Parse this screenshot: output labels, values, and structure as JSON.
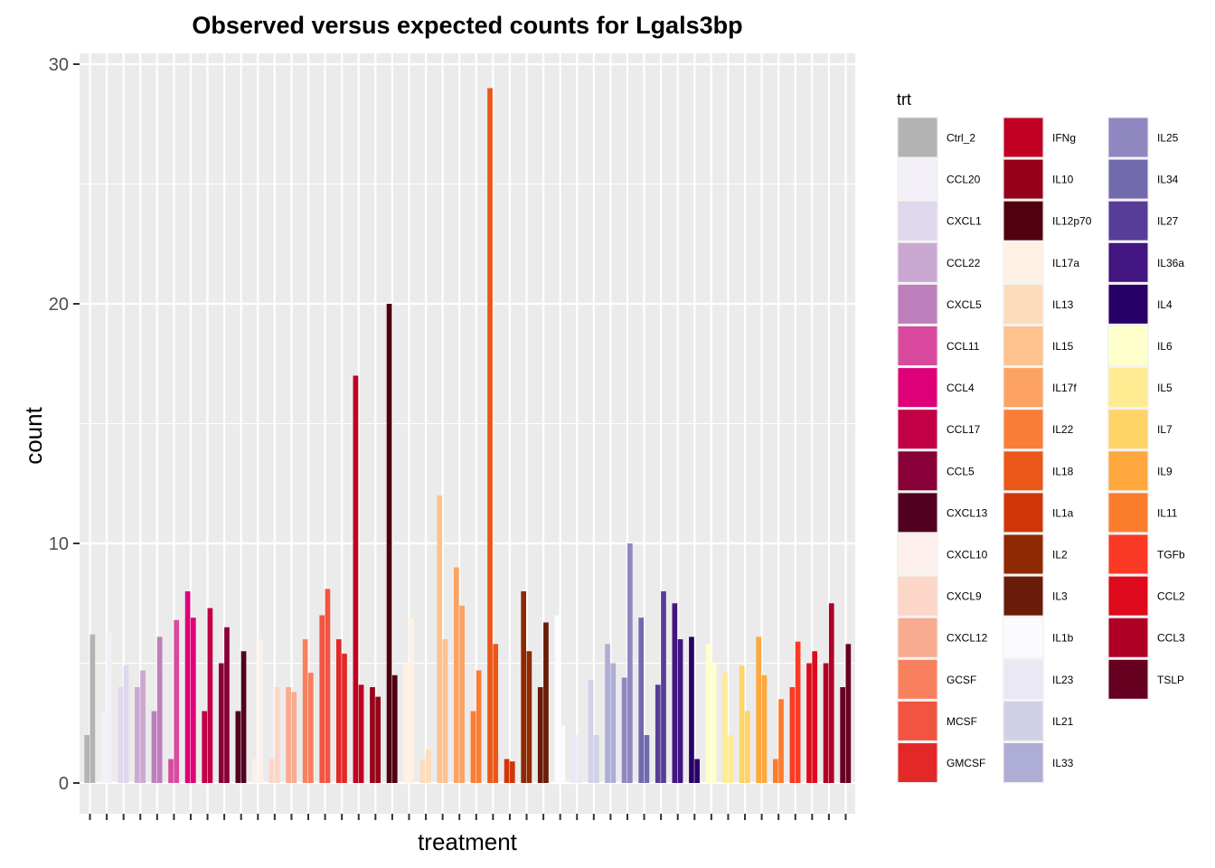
{
  "chart_data": {
    "type": "bar",
    "title": "Observed versus expected counts for Lgals3bp",
    "xlabel": "treatment",
    "ylabel": "count",
    "ylim": [
      -1.3,
      30.5
    ],
    "yticks": [
      0,
      10,
      20,
      30
    ],
    "x_tick_labels_shown": false,
    "grid": true,
    "legend_title": "trt",
    "legend_position": "right",
    "legend_columns": 3,
    "treatments": [
      {
        "name": "Ctrl_2",
        "color": "#B3B3B3",
        "values": [
          2.0,
          6.2
        ]
      },
      {
        "name": "CCL20",
        "color": "#F3EFF6",
        "values": [
          3.0,
          6.3
        ]
      },
      {
        "name": "CXCL1",
        "color": "#DFD7EB",
        "values": [
          4.0,
          4.9
        ]
      },
      {
        "name": "CCL22",
        "color": "#CAA8D2",
        "values": [
          4.0,
          4.7
        ]
      },
      {
        "name": "CXCL5",
        "color": "#BD7FBB",
        "values": [
          3.0,
          6.1
        ]
      },
      {
        "name": "CCL11",
        "color": "#D94A9F",
        "values": [
          1.0,
          6.8
        ]
      },
      {
        "name": "CCL4",
        "color": "#DE0078",
        "values": [
          8.0,
          6.9
        ]
      },
      {
        "name": "CCL17",
        "color": "#C10046",
        "values": [
          3.0,
          7.3
        ]
      },
      {
        "name": "CCL5",
        "color": "#890038",
        "values": [
          5.0,
          6.5
        ]
      },
      {
        "name": "CXCL13",
        "color": "#520020",
        "values": [
          3.0,
          5.5
        ]
      },
      {
        "name": "CXCL10",
        "color": "#FDF0EC",
        "values": [
          1.0,
          6.0
        ]
      },
      {
        "name": "CXCL9",
        "color": "#FCD6C7",
        "values": [
          1.0,
          4.0
        ]
      },
      {
        "name": "CXCL12",
        "color": "#F9AB8F",
        "values": [
          4.0,
          3.8
        ]
      },
      {
        "name": "GCSF",
        "color": "#F8805F",
        "values": [
          6.0,
          4.6
        ]
      },
      {
        "name": "MCSF",
        "color": "#F15440",
        "values": [
          7.0,
          8.1
        ]
      },
      {
        "name": "GMCSF",
        "color": "#E22928",
        "values": [
          6.0,
          5.4
        ]
      },
      {
        "name": "IFNg",
        "color": "#BF0022",
        "values": [
          17.0,
          4.1
        ]
      },
      {
        "name": "IL10",
        "color": "#960018",
        "values": [
          4.0,
          3.6
        ]
      },
      {
        "name": "IL12p70",
        "color": "#50000E",
        "values": [
          20.0,
          4.5
        ]
      },
      {
        "name": "IL17a",
        "color": "#FEF1E3",
        "values": [
          5.0,
          6.9
        ]
      },
      {
        "name": "IL13",
        "color": "#FDDCBC",
        "values": [
          1.0,
          1.4
        ]
      },
      {
        "name": "IL15",
        "color": "#FDC28E",
        "values": [
          12.0,
          6.0
        ]
      },
      {
        "name": "IL17f",
        "color": "#FCA262",
        "values": [
          9.0,
          7.4
        ]
      },
      {
        "name": "IL22",
        "color": "#F97D35",
        "values": [
          3.0,
          4.7
        ]
      },
      {
        "name": "IL18",
        "color": "#EB5718",
        "values": [
          29.0,
          5.8
        ]
      },
      {
        "name": "IL1a",
        "color": "#CF3608",
        "values": [
          1.0,
          0.9
        ]
      },
      {
        "name": "IL2",
        "color": "#8E2904",
        "values": [
          8.0,
          5.5
        ]
      },
      {
        "name": "IL3",
        "color": "#6A1B0A",
        "values": [
          4.0,
          6.7
        ]
      },
      {
        "name": "IL1b",
        "color": "#FBFAFD",
        "values": [
          7.0,
          2.4
        ]
      },
      {
        "name": "IL23",
        "color": "#EAE8F3",
        "values": [
          2.0,
          2.0
        ]
      },
      {
        "name": "IL21",
        "color": "#D0D0E6",
        "values": [
          4.3,
          2.0
        ]
      },
      {
        "name": "IL33",
        "color": "#AEADD5",
        "values": [
          5.8,
          5.0
        ]
      },
      {
        "name": "IL25",
        "color": "#8F87C0",
        "values": [
          4.4,
          10.0
        ]
      },
      {
        "name": "IL34",
        "color": "#716AAD",
        "values": [
          6.9,
          2.0
        ]
      },
      {
        "name": "IL27",
        "color": "#573D98",
        "values": [
          4.1,
          8.0
        ]
      },
      {
        "name": "IL36a",
        "color": "#421581",
        "values": [
          7.5,
          6.0
        ]
      },
      {
        "name": "IL4",
        "color": "#290068",
        "values": [
          6.1,
          1.0
        ]
      },
      {
        "name": "IL6",
        "color": "#FFFFCC",
        "values": [
          5.8,
          5.0
        ]
      },
      {
        "name": "IL5",
        "color": "#FFEB91",
        "values": [
          4.6,
          2.0
        ]
      },
      {
        "name": "IL7",
        "color": "#FED468",
        "values": [
          4.9,
          3.0
        ]
      },
      {
        "name": "IL9",
        "color": "#FEA83E",
        "values": [
          6.1,
          4.5
        ]
      },
      {
        "name": "IL11",
        "color": "#FC7C2E",
        "values": [
          1.0,
          3.5
        ]
      },
      {
        "name": "TGFb",
        "color": "#FA3A24",
        "values": [
          4.0,
          5.9
        ]
      },
      {
        "name": "CCL2",
        "color": "#DE0A1B",
        "values": [
          5.0,
          5.5
        ]
      },
      {
        "name": "CCL3",
        "color": "#B10026",
        "values": [
          5.0,
          7.5
        ]
      },
      {
        "name": "TSLP",
        "color": "#660020",
        "values": [
          4.0,
          5.8
        ]
      }
    ]
  }
}
